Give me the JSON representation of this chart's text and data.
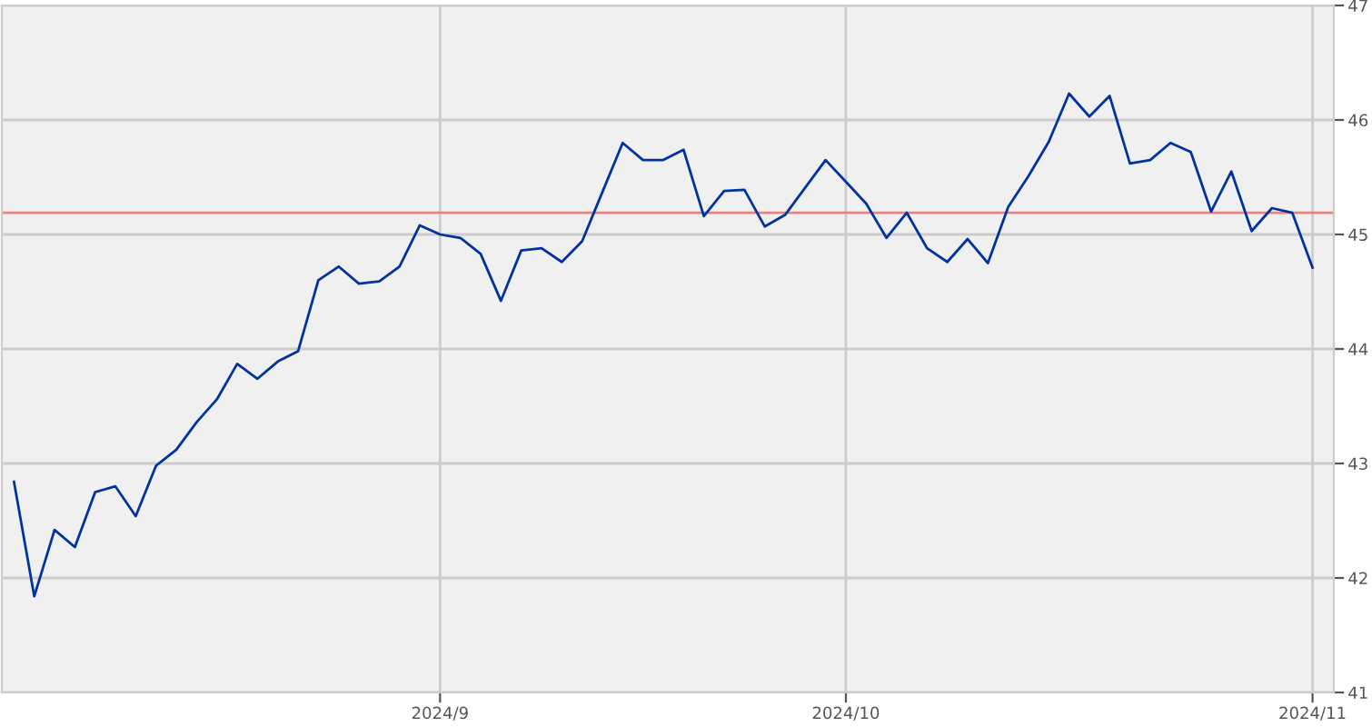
{
  "chart_data": {
    "type": "line",
    "categories": [
      null,
      null,
      null,
      null,
      null,
      null,
      null,
      null,
      null,
      null,
      null,
      null,
      null,
      null,
      null,
      null,
      null,
      null,
      null,
      null,
      null,
      "2024/9",
      null,
      null,
      null,
      null,
      null,
      null,
      null,
      null,
      null,
      null,
      null,
      null,
      null,
      null,
      null,
      null,
      null,
      null,
      null,
      "2024/10",
      null,
      null,
      null,
      null,
      null,
      null,
      null,
      null,
      null,
      null,
      null,
      null,
      null,
      null,
      null,
      null,
      null,
      null,
      null,
      null,
      null,
      null,
      "2024/11"
    ],
    "series": [
      {
        "color": "#0033a0",
        "values": [
          42.84,
          41.84,
          42.42,
          42.27,
          42.75,
          42.8,
          42.54,
          42.98,
          43.12,
          43.36,
          43.56,
          43.87,
          43.74,
          43.89,
          43.98,
          44.6,
          44.72,
          44.57,
          44.59,
          44.72,
          45.08,
          45.0,
          44.97,
          44.83,
          44.42,
          44.86,
          44.88,
          44.76,
          44.94,
          45.37,
          45.8,
          45.65,
          45.65,
          45.74,
          45.16,
          45.38,
          45.39,
          45.07,
          45.17,
          45.41,
          45.65,
          45.46,
          45.27,
          44.97,
          45.19,
          44.88,
          44.76,
          44.96,
          44.75,
          45.24,
          45.51,
          45.81,
          46.23,
          46.03,
          46.21,
          45.62,
          45.65,
          45.8,
          45.72,
          45.2,
          45.55,
          45.03,
          45.23,
          45.19,
          44.71
        ]
      }
    ],
    "ylim": [
      41,
      47
    ],
    "yticks": [
      41,
      42,
      43,
      44,
      45,
      46,
      47
    ],
    "ref_lines": [
      {
        "axis": "y",
        "value": 45.19,
        "color": "#f08080"
      }
    ],
    "grid": true,
    "legend": false,
    "marker": "none",
    "line_style": "solid"
  }
}
